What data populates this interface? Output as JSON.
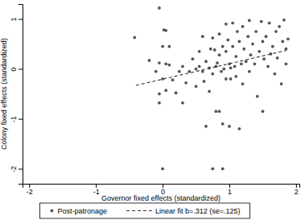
{
  "chart_data": {
    "type": "scatter",
    "xlabel": "Governor fixed effects (standardized)",
    "ylabel": "Colony fixed effects (standardized)",
    "xlim": [
      -2.1,
      2.05
    ],
    "xticks": [
      -2,
      -1,
      0,
      1,
      2
    ],
    "ylim": [
      -2.3,
      1.3
    ],
    "yticks": [
      -2,
      -1,
      0,
      1
    ],
    "grid": false,
    "legend": "bottom",
    "series": [
      {
        "name": "Post-patronage",
        "type": "scatter",
        "marker": "circle",
        "color": "#555555",
        "x": [
          -0.42,
          -0.2,
          -0.1,
          -0.05,
          0.02,
          0.05,
          0.0,
          0.1,
          -0.05,
          0.05,
          0.0,
          -0.05,
          0.05,
          0.2,
          0.3,
          0.15,
          0.25,
          0.3,
          0.35,
          0.4,
          0.45,
          0.5,
          0.5,
          0.55,
          0.55,
          0.6,
          0.6,
          0.62,
          0.65,
          0.65,
          0.7,
          0.7,
          0.72,
          0.75,
          0.75,
          0.78,
          0.8,
          0.8,
          0.82,
          0.85,
          0.85,
          0.85,
          0.88,
          0.9,
          0.9,
          0.92,
          0.95,
          0.95,
          0.98,
          1.0,
          1.0,
          1.02,
          1.05,
          1.05,
          1.08,
          1.1,
          1.1,
          1.12,
          1.15,
          1.15,
          1.18,
          1.2,
          1.2,
          1.22,
          1.25,
          1.28,
          1.3,
          1.3,
          1.32,
          1.35,
          1.38,
          1.4,
          1.42,
          1.45,
          1.48,
          1.5,
          1.5,
          1.52,
          1.55,
          1.58,
          1.6,
          1.62,
          1.65,
          1.68,
          1.7,
          1.72,
          1.75,
          1.78,
          1.8,
          1.82,
          1.85,
          1.85,
          1.88,
          0.0,
          0.75,
          0.9,
          -0.05,
          0.1,
          1.02,
          0.95
        ],
        "values": [
          0.63,
          0.17,
          -0.05,
          1.22,
          0.78,
          0.77,
          0.45,
          0.45,
          0.12,
          0.1,
          -0.2,
          -0.5,
          -0.43,
          -0.48,
          -0.68,
          -0.22,
          -0.05,
          0.05,
          -0.28,
          -0.05,
          0.2,
          0.0,
          -0.35,
          0.05,
          0.35,
          0.65,
          -0.05,
          -0.25,
          -1.15,
          0.15,
          0.02,
          -0.45,
          0.4,
          0.62,
          -0.1,
          0.38,
          -0.85,
          0.05,
          0.12,
          -0.85,
          0.28,
          0.7,
          -0.05,
          -1.1,
          0.45,
          0.0,
          0.9,
          0.35,
          0.58,
          -1.15,
          0.1,
          -0.2,
          0.92,
          0.45,
          0.05,
          0.25,
          -0.15,
          0.75,
          -1.2,
          0.55,
          0.1,
          0.85,
          -0.3,
          0.4,
          0.15,
          0.65,
          0.97,
          -0.05,
          0.28,
          0.5,
          0.1,
          0.75,
          -0.55,
          0.35,
          0.95,
          -0.85,
          0.55,
          0.2,
          0.65,
          0.05,
          0.92,
          0.3,
          0.45,
          -0.1,
          0.75,
          0.22,
          0.85,
          -0.3,
          0.55,
          0.98,
          0.1,
          0.4,
          0.6,
          -2.0,
          -2.0,
          -2.0,
          -0.68,
          0.08,
          0.02,
          -0.2
        ]
      },
      {
        "name": "Linear fit b=.312 (se=.125)",
        "type": "line",
        "line_style": "dashed",
        "color": "#333333",
        "x": [
          -0.4,
          1.85
        ],
        "values": [
          -0.33,
          0.37
        ]
      }
    ]
  }
}
